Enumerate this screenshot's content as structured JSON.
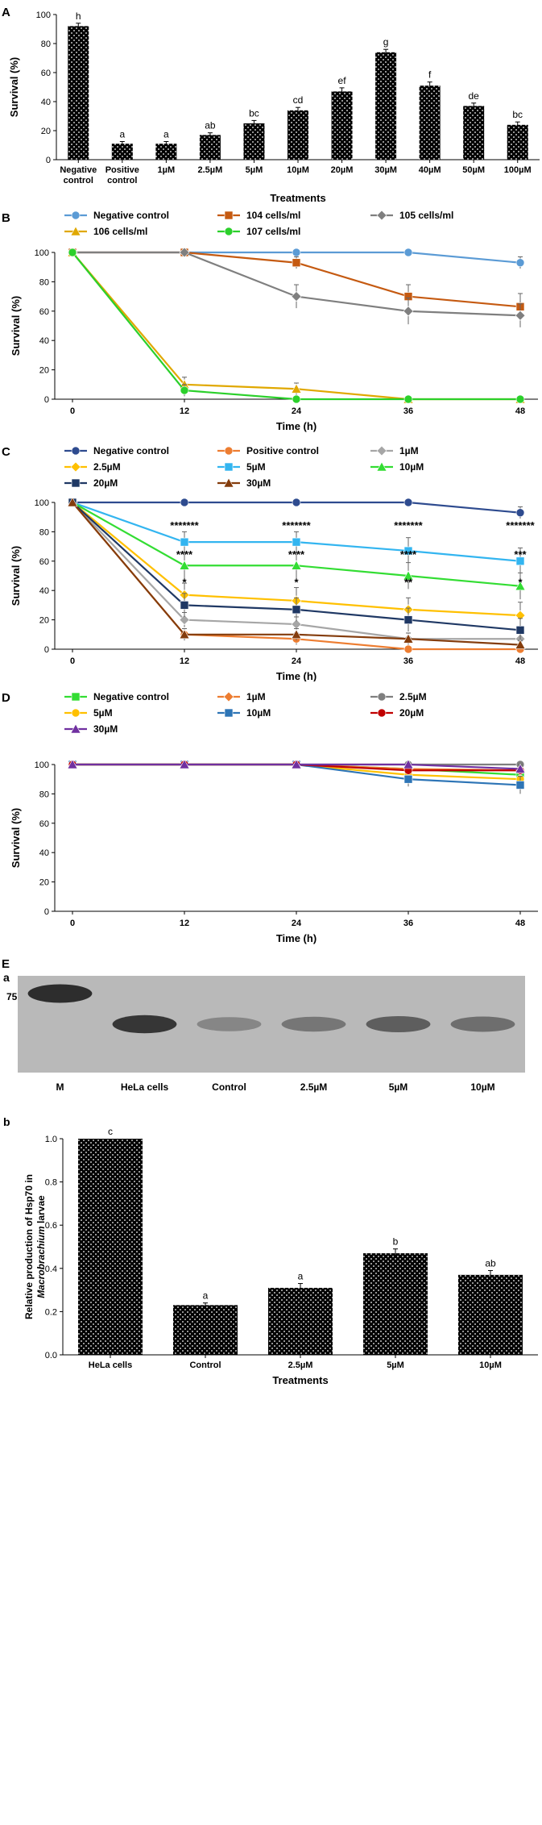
{
  "panels": {
    "A": {
      "letter": "A",
      "chart_data": {
        "type": "bar",
        "xlabel": "Treatments",
        "ylabel": "Survival (%)",
        "ylim": [
          0,
          100
        ],
        "yticks": [
          0,
          20,
          40,
          60,
          80,
          100
        ],
        "categories": [
          "Negative control",
          "Positive control",
          "1µM",
          "2.5µM",
          "5µM",
          "10µM",
          "20µM",
          "30µM",
          "40µM",
          "50µM",
          "100µM"
        ],
        "values": [
          92,
          11,
          11,
          17,
          25,
          34,
          47,
          74,
          51,
          37,
          24
        ],
        "errors": [
          2,
          1.5,
          1.5,
          1.5,
          2,
          2,
          2.5,
          2,
          2.5,
          2,
          2
        ],
        "letters": [
          "h",
          "a",
          "a",
          "ab",
          "bc",
          "cd",
          "ef",
          "g",
          "f",
          "de",
          "bc"
        ]
      }
    },
    "B": {
      "letter": "B",
      "chart_data": {
        "type": "line",
        "xlabel": "Time (h)",
        "ylabel": "Survival (%)",
        "x": [
          0,
          12,
          24,
          36,
          48
        ],
        "ylim": [
          0,
          100
        ],
        "yticks": [
          0,
          20,
          40,
          60,
          80,
          100
        ],
        "series": [
          {
            "name": "Negative control",
            "color": "#5b9bd5",
            "marker": "circle",
            "values": [
              100,
              100,
              100,
              100,
              93
            ],
            "errors": [
              0,
              0,
              0,
              0,
              4
            ]
          },
          {
            "name": "104 cells/ml",
            "color": "#c55a11",
            "marker": "square",
            "values": [
              100,
              100,
              93,
              70,
              63
            ],
            "errors": [
              0,
              0,
              4,
              8,
              9
            ]
          },
          {
            "name": "105 cells/ml",
            "color": "#7f7f7f",
            "marker": "diamond",
            "values": [
              100,
              100,
              70,
              60,
              57
            ],
            "errors": [
              0,
              0,
              8,
              9,
              8
            ]
          },
          {
            "name": "106 cells/ml",
            "color": "#e0a800",
            "marker": "triangle",
            "values": [
              100,
              10,
              7,
              0,
              0
            ],
            "errors": [
              0,
              5,
              4,
              0,
              0
            ]
          },
          {
            "name": "107 cells/ml",
            "color": "#2bd02b",
            "marker": "circle",
            "values": [
              100,
              6,
              0,
              0,
              0
            ],
            "errors": [
              0,
              4,
              0,
              0,
              0
            ]
          }
        ]
      }
    },
    "C": {
      "letter": "C",
      "chart_data": {
        "type": "line",
        "xlabel": "Time (h)",
        "ylabel": "Survival (%)",
        "x": [
          0,
          12,
          24,
          36,
          48
        ],
        "ylim": [
          0,
          100
        ],
        "yticks": [
          0,
          20,
          40,
          60,
          80,
          100
        ],
        "series": [
          {
            "name": "Negative control",
            "color": "#2e4b8f",
            "marker": "circle",
            "values": [
              100,
              100,
              100,
              100,
              93
            ],
            "errors": [
              0,
              0,
              0,
              0,
              4
            ]
          },
          {
            "name": "Positive control",
            "color": "#ed7d31",
            "marker": "circle",
            "values": [
              100,
              10,
              7,
              0,
              0
            ],
            "errors": [
              0,
              4,
              4,
              0,
              0
            ]
          },
          {
            "name": "1µM",
            "color": "#a6a6a6",
            "marker": "diamond",
            "values": [
              100,
              20,
              17,
              7,
              7
            ],
            "errors": [
              0,
              5,
              5,
              4,
              4
            ]
          },
          {
            "name": "2.5µM",
            "color": "#ffc000",
            "marker": "diamond",
            "values": [
              100,
              37,
              33,
              27,
              23
            ],
            "errors": [
              0,
              8,
              9,
              8,
              9
            ]
          },
          {
            "name": "5µM",
            "color": "#33b5f0",
            "marker": "square",
            "values": [
              100,
              73,
              73,
              67,
              60
            ],
            "errors": [
              0,
              7,
              7,
              9,
              9
            ]
          },
          {
            "name": "10µM",
            "color": "#33dd33",
            "marker": "triangle",
            "values": [
              100,
              57,
              57,
              50,
              43
            ],
            "errors": [
              0,
              9,
              9,
              9,
              9
            ]
          },
          {
            "name": "20µM",
            "color": "#1f3864",
            "marker": "square",
            "values": [
              100,
              30,
              27,
              20,
              13
            ],
            "errors": [
              0,
              8,
              8,
              8,
              8
            ]
          },
          {
            "name": "30µM",
            "color": "#843c0c",
            "marker": "triangle",
            "values": [
              100,
              10,
              10,
              7,
              3
            ],
            "errors": [
              0,
              4,
              4,
              4,
              3
            ]
          }
        ],
        "annotations": [
          {
            "x": 12,
            "rows": [
              "*******",
              "****",
              "*"
            ]
          },
          {
            "x": 24,
            "rows": [
              "*******",
              "****",
              "*"
            ]
          },
          {
            "x": 36,
            "rows": [
              "*******",
              "****",
              "**"
            ]
          },
          {
            "x": 48,
            "rows": [
              "*******",
              "***",
              "*"
            ]
          }
        ]
      }
    },
    "D": {
      "letter": "D",
      "chart_data": {
        "type": "line",
        "xlabel": "Time (h)",
        "ylabel": "Survival (%)",
        "x": [
          0,
          12,
          24,
          36,
          48
        ],
        "ylim": [
          0,
          100
        ],
        "yticks": [
          0,
          20,
          40,
          60,
          80,
          100
        ],
        "series": [
          {
            "name": "Negative control",
            "color": "#33dd33",
            "marker": "square",
            "values": [
              100,
              100,
              100,
              97,
              93
            ],
            "errors": [
              0,
              0,
              0,
              3,
              4
            ]
          },
          {
            "name": "1µM",
            "color": "#ed7d31",
            "marker": "diamond",
            "values": [
              100,
              100,
              100,
              97,
              96
            ],
            "errors": [
              0,
              0,
              0,
              3,
              3
            ]
          },
          {
            "name": "2.5µM",
            "color": "#7f7f7f",
            "marker": "circle",
            "values": [
              100,
              100,
              100,
              100,
              100
            ],
            "errors": [
              0,
              0,
              0,
              0,
              0
            ]
          },
          {
            "name": "5µM",
            "color": "#ffc000",
            "marker": "circle",
            "values": [
              100,
              100,
              100,
              93,
              90
            ],
            "errors": [
              0,
              0,
              0,
              4,
              4
            ]
          },
          {
            "name": "10µM",
            "color": "#2e75b6",
            "marker": "square",
            "values": [
              100,
              100,
              100,
              90,
              86
            ],
            "errors": [
              0,
              0,
              0,
              5,
              6
            ]
          },
          {
            "name": "20µM",
            "color": "#c00000",
            "marker": "circle",
            "values": [
              100,
              100,
              100,
              96,
              96
            ],
            "errors": [
              0,
              0,
              0,
              3,
              3
            ]
          },
          {
            "name": "30µM",
            "color": "#7030a0",
            "marker": "triangle",
            "values": [
              100,
              100,
              100,
              100,
              97
            ],
            "errors": [
              0,
              0,
              0,
              0,
              3
            ]
          }
        ]
      }
    },
    "E": {
      "letter": "E",
      "gel": {
        "sublabel": "a",
        "marker_size": "75",
        "lanes": [
          "M",
          "HeLa cells",
          "Control",
          "2.5µM",
          "5µM",
          "10µM"
        ],
        "band_intensity": [
          0.9,
          0.85,
          0.35,
          0.45,
          0.6,
          0.5
        ]
      },
      "chart_data": {
        "type": "bar",
        "sublabel": "b",
        "xlabel": "Treatments",
        "ylabel": "Relative production of Hsp70 in Macrobrachium larvae",
        "ylabel_plain": "Relative production of Hsp70 in",
        "ylabel_italic": "Macrobrachium",
        "ylabel_tail": "larvae",
        "ylim": [
          0,
          1.0
        ],
        "yticks": [
          "0.0",
          "0.2",
          "0.4",
          "0.6",
          "0.8",
          "1.0"
        ],
        "categories": [
          "HeLa cells",
          "Control",
          "2.5µM",
          "5µM",
          "10µM"
        ],
        "values": [
          1.0,
          0.23,
          0.31,
          0.47,
          0.37
        ],
        "errors": [
          0,
          0.01,
          0.02,
          0.02,
          0.02
        ],
        "letters": [
          "c",
          "a",
          "a",
          "b",
          "ab"
        ]
      }
    }
  }
}
